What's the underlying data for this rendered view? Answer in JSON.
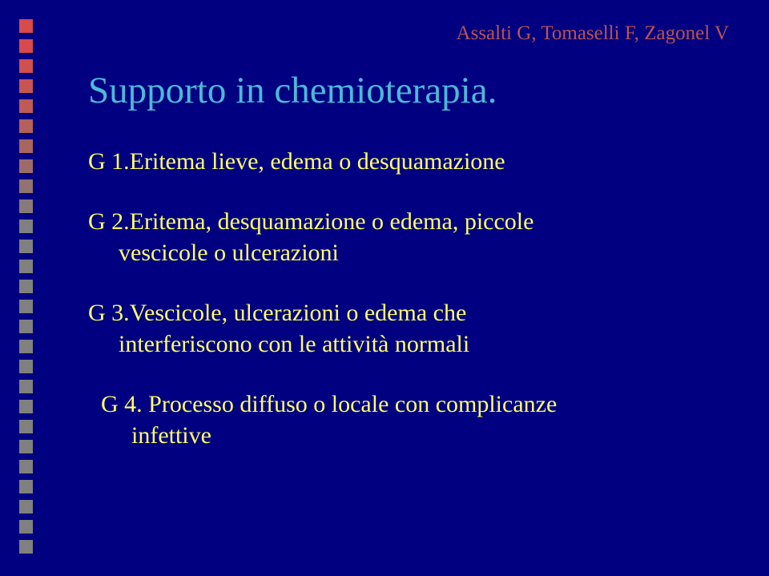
{
  "attribution": "Assalti G, Tomaselli F, Zagonel V",
  "title": "Supporto in chemioterapia.",
  "grades": {
    "g1": "G 1.Eritema lieve, edema o desquamazione",
    "g2_line1": "G 2.Eritema, desquamazione o edema, piccole",
    "g2_line2": "vescicole o ulcerazioni",
    "g3_line1": "G 3.Vescicole, ulcerazioni o edema che",
    "g3_line2": "interferiscono con le attività normali",
    "g4_line1": "G 4. Processo diffuso o locale con complicanze",
    "g4_line2": "infettive"
  },
  "square_colors": [
    "#d94a4a",
    "#d94a4a",
    "#d0504e",
    "#c85552",
    "#bf5a56",
    "#b4605b",
    "#a96660",
    "#9e6c68",
    "#937370",
    "#897a79",
    "#808080",
    "#808080",
    "#808080",
    "#808080",
    "#808080",
    "#808080",
    "#808080",
    "#808080",
    "#808080",
    "#808080",
    "#808080",
    "#808080",
    "#808080",
    "#808080",
    "#808080",
    "#808080",
    "#808080"
  ]
}
